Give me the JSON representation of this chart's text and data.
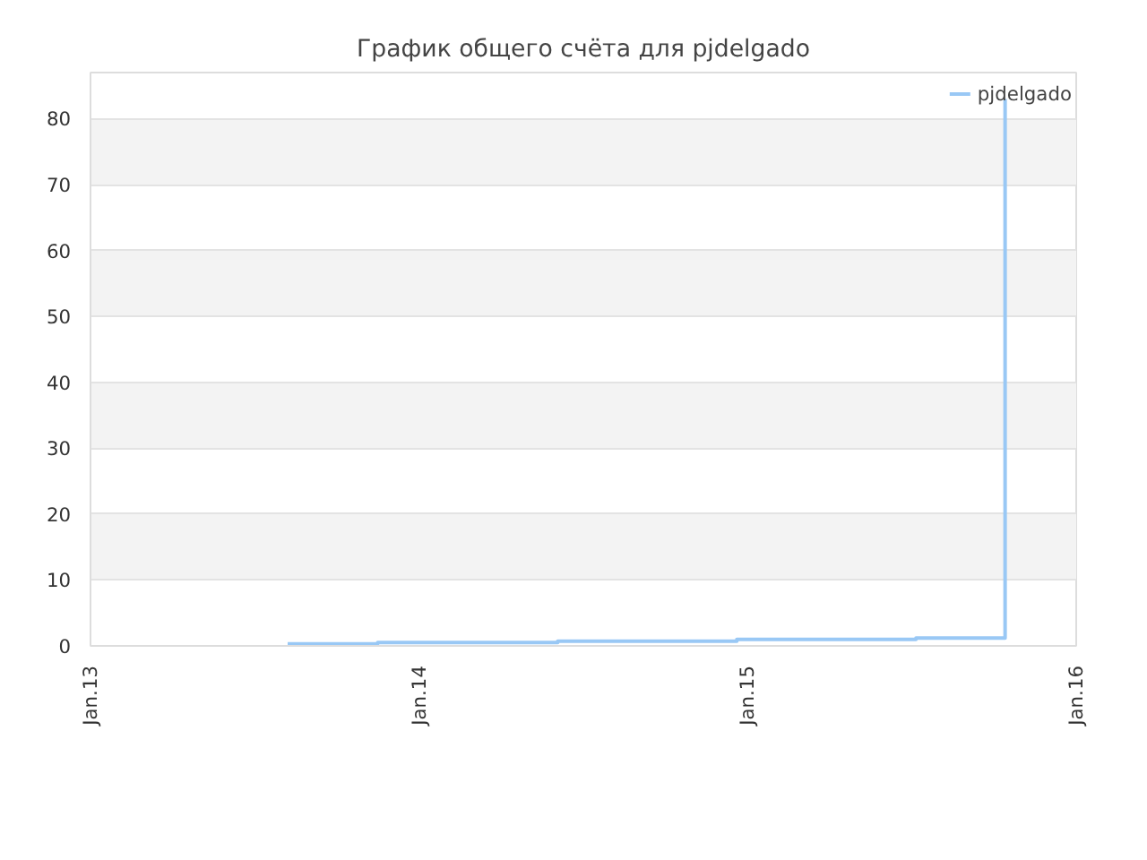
{
  "chart_data": {
    "type": "step",
    "title": "График общего счёта для pjdelgado",
    "x": [
      "2013-08-08",
      "2013-11-16",
      "2014-06-04",
      "2014-12-20",
      "2015-07-07",
      "2015-10-14",
      "2015-10-14",
      "2015-10-14",
      "2015-10-14",
      "2015-10-14",
      "2015-10-14",
      "2015-10-14",
      "2015-10-14",
      "2015-10-14",
      "2015-10-14",
      "2015-10-14",
      "2015-10-14"
    ],
    "series": [
      {
        "name": "pjdelgado",
        "color": "#99c8f5",
        "values": [
          0.3,
          0.5,
          0.7,
          1.0,
          1.2,
          1.6,
          3,
          6,
          8,
          15,
          23,
          32,
          43,
          55,
          68,
          83,
          83
        ]
      }
    ],
    "xlim": [
      "2013-01-01",
      "2016-01-01"
    ],
    "xticks": [
      {
        "value": "2013-01-01",
        "label": "Jan.13"
      },
      {
        "value": "2014-01-01",
        "label": "Jan.14"
      },
      {
        "value": "2015-01-01",
        "label": "Jan.15"
      },
      {
        "value": "2016-01-01",
        "label": "Jan.16"
      }
    ],
    "ylim": [
      0,
      87
    ],
    "yticks": [
      0,
      10,
      20,
      30,
      40,
      50,
      60,
      70,
      80
    ],
    "grid": "y",
    "legend": "top right",
    "marker": "none",
    "line_style": "solid"
  }
}
